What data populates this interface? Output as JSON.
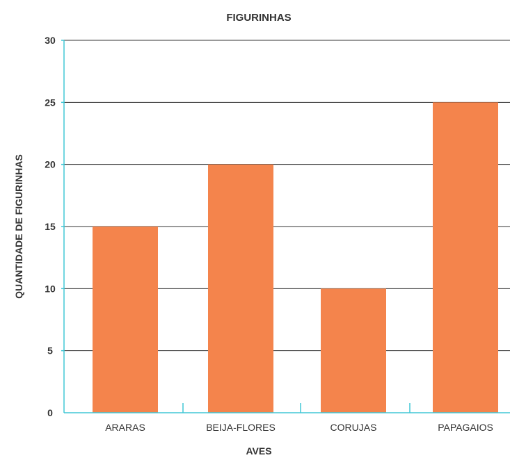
{
  "chart_data": {
    "type": "bar",
    "title": "FIGURINHAS",
    "xlabel": "AVES",
    "ylabel": "QUANTIDADE DE FIGURINHAS",
    "categories": [
      "ARARAS",
      "BEIJA-FLORES",
      "CORUJAS",
      "PAPAGAIOS"
    ],
    "values": [
      15,
      20,
      10,
      25
    ],
    "ylim": [
      0,
      30
    ],
    "yticks": [
      "0",
      "5",
      "10",
      "15",
      "20",
      "25",
      "30"
    ],
    "grid": true,
    "legend": "none",
    "colors": {
      "bar": "#f4844c",
      "axis": "#41c7d6",
      "grid": "#333333",
      "text": "#333333"
    }
  }
}
